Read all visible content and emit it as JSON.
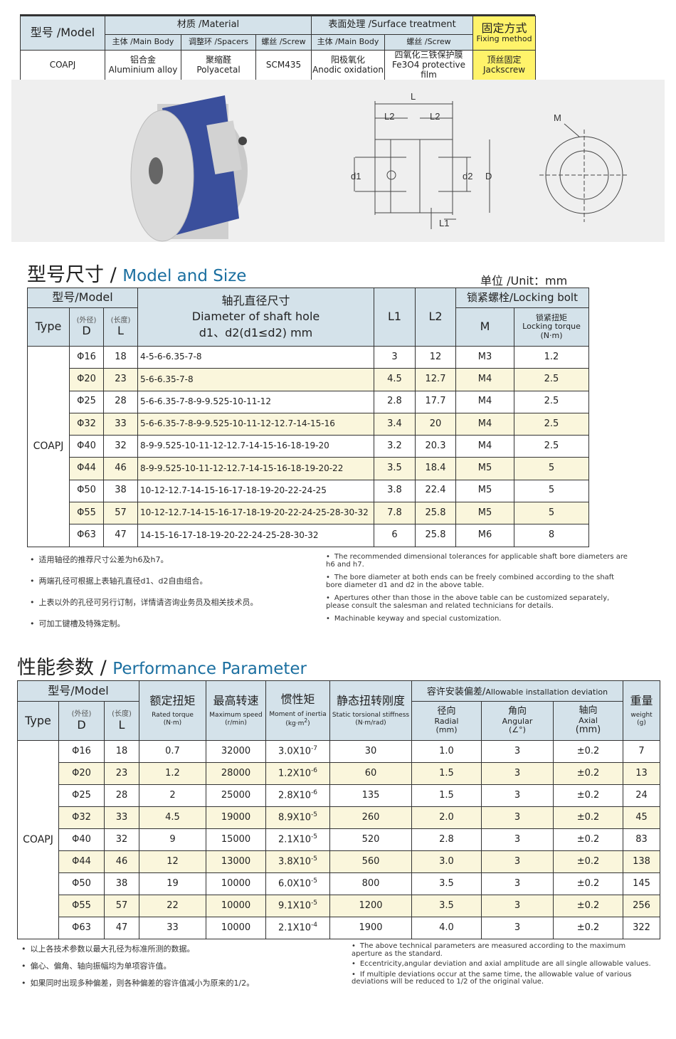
{
  "spec_table": {
    "model_header": "型号 /Model",
    "material": "材质 /Material",
    "surface": "表面处理 /Surface treatment",
    "fixing_cn": "固定方式",
    "fixing_en": "Fixing method",
    "sub": [
      "主体 /Main Body",
      "调整环 /Spacers",
      "螺丝 /Screw",
      "主体 /Main Body",
      "螺丝 /Screw"
    ],
    "row": {
      "model": "COAPJ",
      "c1_cn": "铝合金",
      "c1_en": "Aluminium alloy",
      "c2_cn": "聚缩醛",
      "c2_en": "Polyacetal",
      "c3": "SCM435",
      "c4_cn": "阳极氧化",
      "c4_en": "Anodic oxidation",
      "c5_cn": "四氧化三铁保护膜",
      "c5_en": "Fe3O4 protective film",
      "c6_cn": "顶丝固定",
      "c6_en": "Jackscrew"
    }
  },
  "diagram": {
    "labels": {
      "L": "L",
      "L2": "L2",
      "L1": "L1",
      "d1": "d1",
      "d2": "d2",
      "D": "D",
      "M": "M"
    }
  },
  "size": {
    "title_cn": "型号尺寸 /",
    "title_en": "Model and Size",
    "unit": "单位 /Unit：mm",
    "headers": {
      "model": "型号/Model",
      "type": "Type",
      "d_cn": "(外径)",
      "d": "D",
      "l_cn": "(长度)",
      "l": "L",
      "shaft_cn": "轴孔直径尺寸",
      "shaft_en": "Diameter of shaft hole",
      "shaft_sub": "d1、d2(d1≤d2) mm",
      "l1": "L1",
      "l2": "L2",
      "bolt": "锁紧螺栓/Locking bolt",
      "m": "M",
      "torque_cn": "锁紧扭矩",
      "torque_en": "Locking torque",
      "torque_unit": "(N·m)"
    },
    "type": "COAPJ",
    "rows": [
      [
        "Φ16",
        "18",
        "4-5-6-6.35-7-8",
        "3",
        "12",
        "M3",
        "1.2"
      ],
      [
        "Φ20",
        "23",
        "5-6-6.35-7-8",
        "4.5",
        "12.7",
        "M4",
        "2.5"
      ],
      [
        "Φ25",
        "28",
        "5-6-6.35-7-8-9-9.525-10-11-12",
        "2.8",
        "17.7",
        "M4",
        "2.5"
      ],
      [
        "Φ32",
        "33",
        "5-6-6.35-7-8-9-9.525-10-11-12-12.7-14-15-16",
        "3.4",
        "20",
        "M4",
        "2.5"
      ],
      [
        "Φ40",
        "32",
        "8-9-9.525-10-11-12-12.7-14-15-16-18-19-20",
        "3.2",
        "20.3",
        "M4",
        "2.5"
      ],
      [
        "Φ44",
        "46",
        "8-9-9.525-10-11-12-12.7-14-15-16-18-19-20-22",
        "3.5",
        "18.4",
        "M5",
        "5"
      ],
      [
        "Φ50",
        "38",
        "10-12-12.7-14-15-16-17-18-19-20-22-24-25",
        "3.8",
        "22.4",
        "M5",
        "5"
      ],
      [
        "Φ55",
        "57",
        "10-12-12.7-14-15-16-17-18-19-20-22-24-25-28-30-32",
        "7.8",
        "25.8",
        "M5",
        "5"
      ],
      [
        "Φ63",
        "47",
        "14-15-16-17-18-19-20-22-24-25-28-30-32",
        "6",
        "25.8",
        "M6",
        "8"
      ]
    ],
    "notes_cn": [
      "适用轴径的推荐尺寸公差为h6及h7。",
      "两端孔径可根据上表轴孔直径d1、d2自由组合。",
      "上表以外的孔径可另行订制，详情请咨询业务员及相关技术员。",
      "可加工键槽及特殊定制。"
    ],
    "notes_en": [
      "The recommended dimensional tolerances for applicable shaft bore diameters are h6 and h7.",
      "The bore diameter at both ends can be freely combined according to the shaft bore diameter d1 and d2 in the above table.",
      "Apertures other than those in the above table can be customized separately, please consult the salesman and related technicians for details.",
      "Machinable keyway and special customization."
    ]
  },
  "perf": {
    "title_cn": "性能参数 /",
    "title_en": "Performance Parameter",
    "headers": {
      "model": "型号/Model",
      "type": "Type",
      "d_cn": "(外径)",
      "d": "D",
      "l_cn": "(长度)",
      "l": "L",
      "torque_cn": "额定扭矩",
      "torque_en": "Rated torque",
      "torque_unit": "(N·m)",
      "speed_cn": "最高转速",
      "speed_en": "Maximum speed",
      "speed_unit": "(r/min)",
      "inertia_cn": "惯性矩",
      "inertia_en": "Moment of inertia",
      "inertia_unit": "(kg·m",
      "stiff_cn": "静态扭转刚度",
      "stiff_en": "Static torsional stiffness",
      "stiff_unit": "(N·m/rad)",
      "dev": "容许安装偏差/",
      "dev_en": "Allowable installation deviation",
      "radial_cn": "径向",
      "radial_en": "Radial",
      "radial_unit": "(mm)",
      "angular_cn": "角向",
      "angular_en": "Angular",
      "angular_unit": "(∠°)",
      "axial_cn": "轴向",
      "axial_en": "Axial",
      "axial_unit": "(mm)",
      "weight_cn": "重量",
      "weight_en": "weight",
      "weight_unit": "(g)"
    },
    "type": "COAPJ",
    "rows": [
      [
        "Φ16",
        "18",
        "0.7",
        "32000",
        "3.0X10",
        "-7",
        "30",
        "1.0",
        "3",
        "±0.2",
        "7"
      ],
      [
        "Φ20",
        "23",
        "1.2",
        "28000",
        "1.2X10",
        "-6",
        "60",
        "1.5",
        "3",
        "±0.2",
        "13"
      ],
      [
        "Φ25",
        "28",
        "2",
        "25000",
        "2.8X10",
        "-6",
        "135",
        "1.5",
        "3",
        "±0.2",
        "24"
      ],
      [
        "Φ32",
        "33",
        "4.5",
        "19000",
        "8.9X10",
        "-5",
        "260",
        "2.0",
        "3",
        "±0.2",
        "45"
      ],
      [
        "Φ40",
        "32",
        "9",
        "15000",
        "2.1X10",
        "-5",
        "520",
        "2.8",
        "3",
        "±0.2",
        "83"
      ],
      [
        "Φ44",
        "46",
        "12",
        "13000",
        "3.8X10",
        "-5",
        "560",
        "3.0",
        "3",
        "±0.2",
        "138"
      ],
      [
        "Φ50",
        "38",
        "19",
        "10000",
        "6.0X10",
        "-5",
        "800",
        "3.5",
        "3",
        "±0.2",
        "145"
      ],
      [
        "Φ55",
        "57",
        "22",
        "10000",
        "9.1X10",
        "-5",
        "1200",
        "3.5",
        "3",
        "±0.2",
        "256"
      ],
      [
        "Φ63",
        "47",
        "33",
        "10000",
        "2.1X10",
        "-4",
        "1900",
        "4.0",
        "3",
        "±0.2",
        "322"
      ]
    ],
    "notes_cn": [
      "以上各技术参数以最大孔径为标准所测的数据。",
      "偏心、偏角、轴向振幅均为单项容许值。",
      "如果同时出现多种偏差，则各种偏差的容许值减小为原来的1/2。"
    ],
    "notes_en": [
      "The above technical parameters are measured according to the maximum aperture as the standard.",
      "Eccentricity,angular deviation and axial amplitude are all single allowable values.",
      "If multiple deviations occur at the same time, the allowable value of various deviations will be reduced to 1/2 of the original value."
    ]
  },
  "colors": {
    "header_bg": "#d4e2ea",
    "alt_row": "#faf6dc",
    "fixing_bg": "#fff36a",
    "title_blue": "#1b6fa0",
    "coupling_blue": "#3a4f9c"
  }
}
